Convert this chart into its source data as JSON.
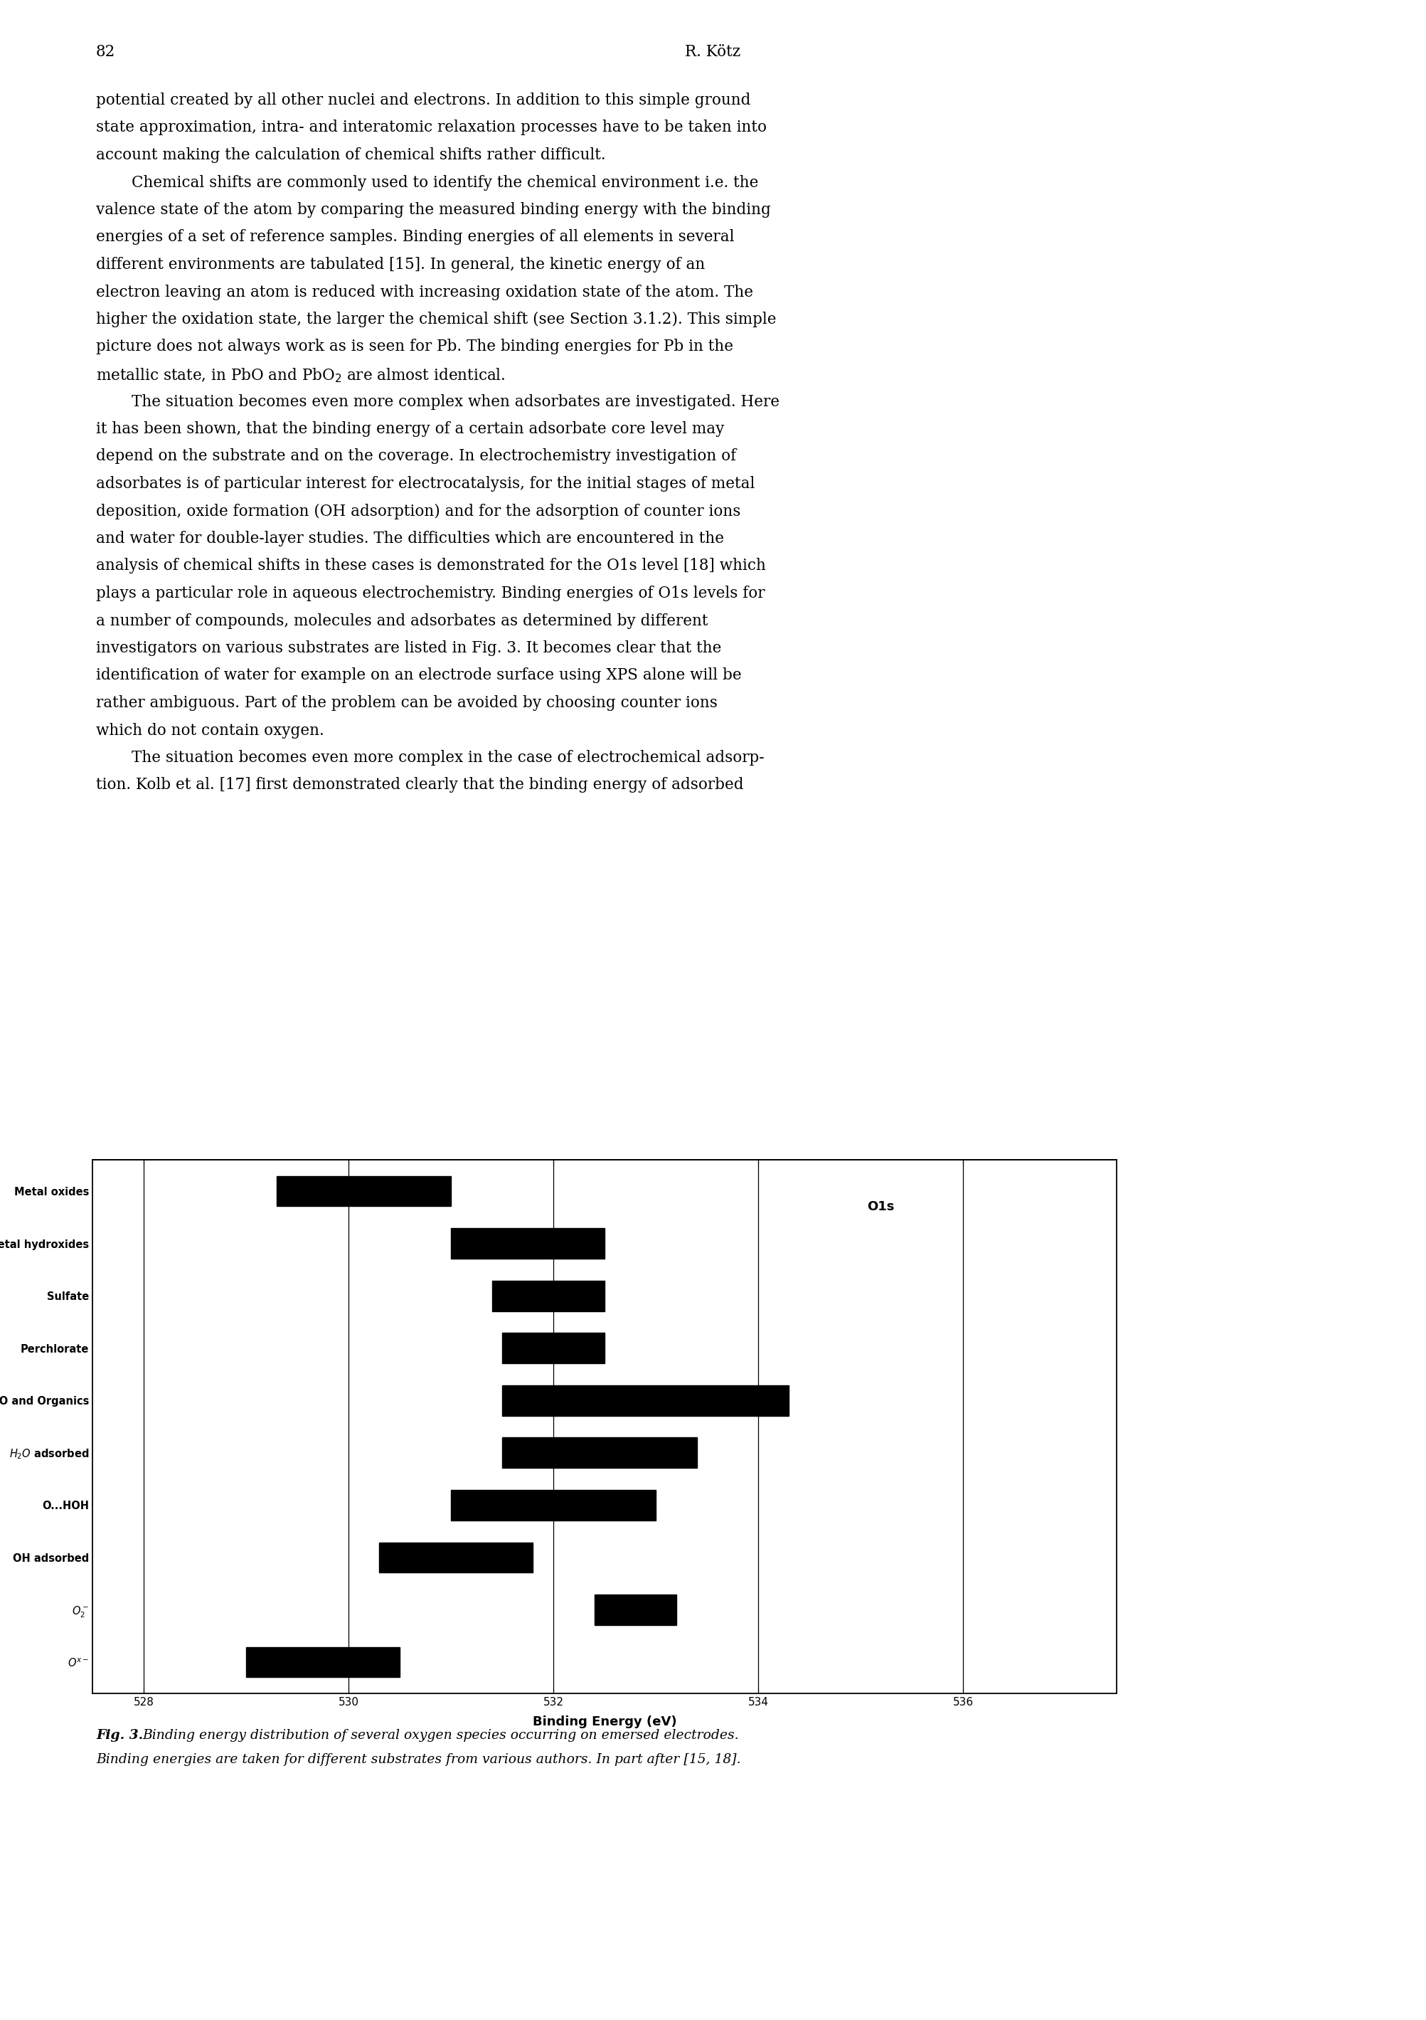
{
  "bar_ranges": [
    [
      529.3,
      531.0
    ],
    [
      531.0,
      532.5
    ],
    [
      531.4,
      532.5
    ],
    [
      531.5,
      532.5
    ],
    [
      531.5,
      534.3
    ],
    [
      531.5,
      533.4
    ],
    [
      531.0,
      533.0
    ],
    [
      530.3,
      531.8
    ],
    [
      532.4,
      533.2
    ],
    [
      529.0,
      530.5
    ]
  ],
  "xlim": [
    527.5,
    537.5
  ],
  "xticks": [
    528,
    530,
    532,
    534,
    536
  ],
  "xlabel": "Binding Energy (eV)",
  "label_O1s": "O1s",
  "bar_color": "#000000",
  "bg_color": "#ffffff",
  "page_number": "82",
  "page_header": "R. Kötz"
}
